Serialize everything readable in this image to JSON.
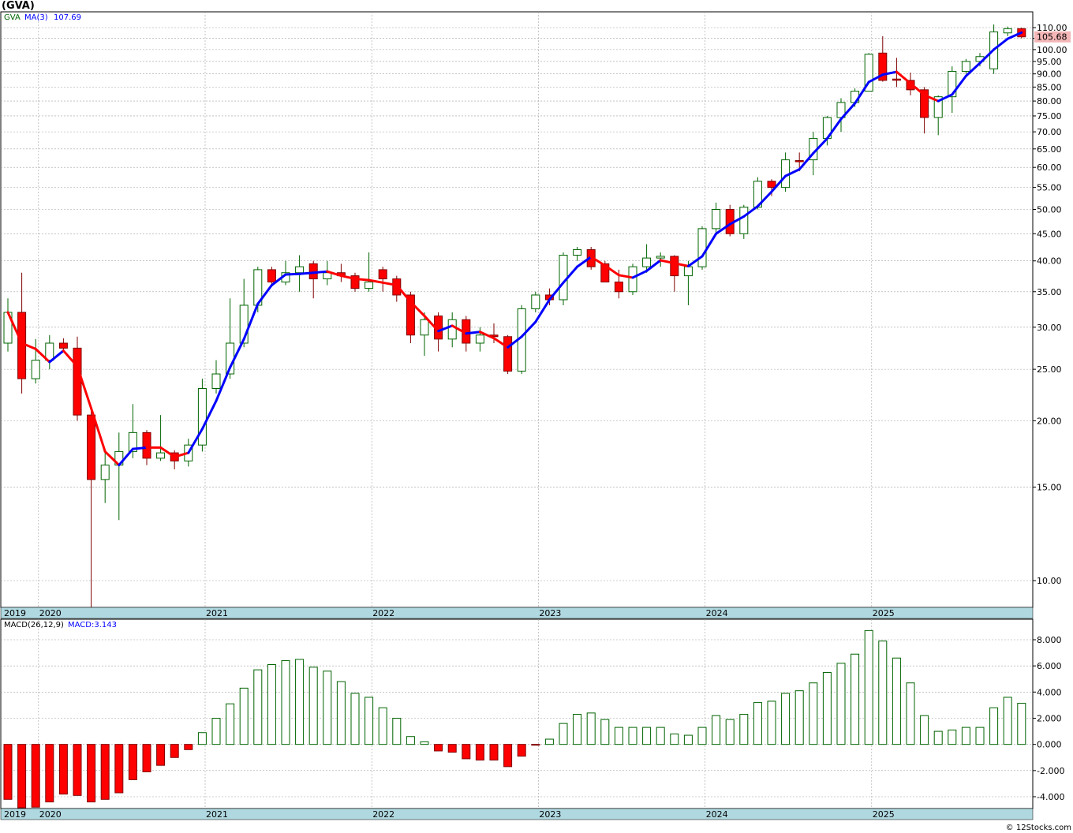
{
  "header": {
    "title": "(GVA)"
  },
  "legend": {
    "symbol": "GVA",
    "ma_label": "MA(3)",
    "ma_value": "107.69",
    "macd_label": "MACD(26,12,9)",
    "macd_value_label": "MACD:3.143"
  },
  "last_price_label": "105.68",
  "footer": {
    "credit": "© 12Stocks.com"
  },
  "colors": {
    "up": "#006400",
    "down": "#ff0000",
    "ma_up": "#0000ff",
    "ma_down": "#ff0000",
    "axis_band": "#b0d8e0",
    "grid": "#a0a0a0",
    "price_box": "#f4b6b6"
  },
  "chart_data": [
    {
      "type": "candlestick",
      "scale": "log",
      "ylim": [
        9,
        115
      ],
      "y_ticks": [
        "10.00",
        "15.00",
        "20.00",
        "25.00",
        "30.00",
        "35.00",
        "40.00",
        "45.00",
        "50.00",
        "55.00",
        "60.00",
        "65.00",
        "70.00",
        "75.00",
        "80.00",
        "85.00",
        "90.00",
        "95.00",
        "100.00",
        "105.00",
        "110.00"
      ],
      "x_labels": [
        "2019",
        "2020",
        "2021",
        "2022",
        "2023",
        "2024",
        "2025"
      ],
      "x_label_months": [
        0,
        3,
        15,
        27,
        39,
        51,
        63
      ],
      "ohlc": [
        [
          28.0,
          34.0,
          27.0,
          32.0
        ],
        [
          32.0,
          38.0,
          22.5,
          24.0
        ],
        [
          24.0,
          28.5,
          23.5,
          26.0
        ],
        [
          26.0,
          29.0,
          25.0,
          28.0
        ],
        [
          28.0,
          28.6,
          27.0,
          27.4
        ],
        [
          27.4,
          28.8,
          20.0,
          20.5
        ],
        [
          20.5,
          21.0,
          8.0,
          15.5
        ],
        [
          15.5,
          17.5,
          14.0,
          16.5
        ],
        [
          16.5,
          19.0,
          13.0,
          17.5
        ],
        [
          17.5,
          21.5,
          17.0,
          19.0
        ],
        [
          19.0,
          19.2,
          16.5,
          17.0
        ],
        [
          17.0,
          20.5,
          16.8,
          17.4
        ],
        [
          17.4,
          17.6,
          16.2,
          16.8
        ],
        [
          16.8,
          18.5,
          16.4,
          18.0
        ],
        [
          18.0,
          24.0,
          17.5,
          23.0
        ],
        [
          23.0,
          26.0,
          22.5,
          24.5
        ],
        [
          24.5,
          34.0,
          24.0,
          28.0
        ],
        [
          28.0,
          37.0,
          27.5,
          33.0
        ],
        [
          33.0,
          39.0,
          32.0,
          38.5
        ],
        [
          38.5,
          39.0,
          36.0,
          36.5
        ],
        [
          36.5,
          40.0,
          36.0,
          38.0
        ],
        [
          38.0,
          41.0,
          35.0,
          39.0
        ],
        [
          39.5,
          40.0,
          34.0,
          37.0
        ],
        [
          37.0,
          40.0,
          36.0,
          38.0
        ],
        [
          38.0,
          39.5,
          36.5,
          37.5
        ],
        [
          37.5,
          38.0,
          35.0,
          35.5
        ],
        [
          35.5,
          41.5,
          35.0,
          36.5
        ],
        [
          38.5,
          39.0,
          35.0,
          37.0
        ],
        [
          37.0,
          37.5,
          33.5,
          34.5
        ],
        [
          34.5,
          35.0,
          28.0,
          29.0
        ],
        [
          29.0,
          32.0,
          26.5,
          31.0
        ],
        [
          31.5,
          32.0,
          27.0,
          28.5
        ],
        [
          28.5,
          32.0,
          27.5,
          31.0
        ],
        [
          31.0,
          31.5,
          27.0,
          28.0
        ],
        [
          28.0,
          30.0,
          27.0,
          29.0
        ],
        [
          29.0,
          30.5,
          28.0,
          28.8
        ],
        [
          28.8,
          29.0,
          24.5,
          24.8
        ],
        [
          24.8,
          33.0,
          24.5,
          32.5
        ],
        [
          32.5,
          35.0,
          32.0,
          34.5
        ],
        [
          34.5,
          35.5,
          33.0,
          33.8
        ],
        [
          33.8,
          41.5,
          33.0,
          41.0
        ],
        [
          41.0,
          42.5,
          40.0,
          42.0
        ],
        [
          42.0,
          42.5,
          38.5,
          39.0
        ],
        [
          39.5,
          40.0,
          36.5,
          36.5
        ],
        [
          36.5,
          38.5,
          34.0,
          35.0
        ],
        [
          35.0,
          39.5,
          34.5,
          39.0
        ],
        [
          39.0,
          43.0,
          38.0,
          40.5
        ],
        [
          40.5,
          41.5,
          39.0,
          40.8
        ],
        [
          40.8,
          41.0,
          35.0,
          37.5
        ],
        [
          37.5,
          40.0,
          33.0,
          39.0
        ],
        [
          39.0,
          46.5,
          38.5,
          46.0
        ],
        [
          46.0,
          51.5,
          45.0,
          50.0
        ],
        [
          50.0,
          51.0,
          44.5,
          45.0
        ],
        [
          45.0,
          51.0,
          44.0,
          50.5
        ],
        [
          50.5,
          57.5,
          50.0,
          56.5
        ],
        [
          56.5,
          57.0,
          53.0,
          55.0
        ],
        [
          55.0,
          64.0,
          54.0,
          62.0
        ],
        [
          61.8,
          64.0,
          59.0,
          61.5
        ],
        [
          62.0,
          70.0,
          58.0,
          68.0
        ],
        [
          68.0,
          75.0,
          66.0,
          74.5
        ],
        [
          74.5,
          81.0,
          70.0,
          79.5
        ],
        [
          79.5,
          84.5,
          78.0,
          83.5
        ],
        [
          83.5,
          98.5,
          84.0,
          98.0
        ],
        [
          98.5,
          106.0,
          87.0,
          87.5
        ],
        [
          88.0,
          96.5,
          85.0,
          87.8
        ],
        [
          87.5,
          90.5,
          82.0,
          84.0
        ],
        [
          84.0,
          85.0,
          69.5,
          74.5
        ],
        [
          74.5,
          82.0,
          69.0,
          81.5
        ],
        [
          81.5,
          93.0,
          76.0,
          91.0
        ],
        [
          91.0,
          96.0,
          90.0,
          95.0
        ],
        [
          95.0,
          98.5,
          93.0,
          97.0
        ],
        [
          92.0,
          111.5,
          90.0,
          108.0
        ],
        [
          107.5,
          110.5,
          106.0,
          109.5
        ],
        [
          109.5,
          110.0,
          105.0,
          105.68
        ]
      ],
      "ma3": [
        32.0,
        28.0,
        27.3,
        25.8,
        27.1,
        25.3,
        21.1,
        17.5,
        16.5,
        17.7,
        17.8,
        17.8,
        17.1,
        17.4,
        19.3,
        21.8,
        25.2,
        28.5,
        33.2,
        36.0,
        37.7,
        37.8,
        38.0,
        38.2,
        37.5,
        37.0,
        36.8,
        36.4,
        36.0,
        33.5,
        31.5,
        29.5,
        30.2,
        29.2,
        29.4,
        28.6,
        27.5,
        28.8,
        30.7,
        33.8,
        36.4,
        39.0,
        40.7,
        39.2,
        37.6,
        37.2,
        38.3,
        40.1,
        39.6,
        39.1,
        40.8,
        45.0,
        46.9,
        48.5,
        50.7,
        54.0,
        57.8,
        59.5,
        63.8,
        68.0,
        74.0,
        79.2,
        86.9,
        89.7,
        90.8,
        86.4,
        82.1,
        80.0,
        82.3,
        89.2,
        94.3,
        100.0,
        104.8,
        107.69
      ],
      "ma_trend_up": [
        null,
        false,
        false,
        false,
        true,
        false,
        false,
        false,
        false,
        true,
        true,
        false,
        false,
        false,
        true,
        true,
        true,
        true,
        true,
        true,
        true,
        true,
        true,
        true,
        false,
        false,
        false,
        false,
        false,
        false,
        false,
        false,
        true,
        false,
        true,
        false,
        false,
        true,
        true,
        true,
        true,
        true,
        true,
        false,
        false,
        false,
        true,
        true,
        false,
        false,
        true,
        true,
        true,
        true,
        true,
        true,
        true,
        true,
        true,
        true,
        true,
        true,
        true,
        true,
        true,
        false,
        false,
        false,
        true,
        true,
        true,
        true,
        true,
        true
      ]
    },
    {
      "type": "bar",
      "title": "MACD(26,12,9)",
      "ylim": [
        -5,
        9
      ],
      "y_ticks": [
        "-4.000",
        "-2.000",
        "0.000",
        "2.000",
        "4.000",
        "6.000",
        "8.000"
      ],
      "x_labels": [
        "2019",
        "2020",
        "2021",
        "2022",
        "2023",
        "2024",
        "2025"
      ],
      "values": [
        -4.2,
        -5.5,
        -4.8,
        -4.4,
        -3.8,
        -3.9,
        -4.4,
        -4.2,
        -3.7,
        -2.7,
        -2.1,
        -1.6,
        -1.0,
        -0.4,
        0.9,
        2.0,
        3.1,
        4.3,
        5.7,
        6.1,
        6.4,
        6.5,
        5.9,
        5.6,
        4.8,
        3.9,
        3.6,
        2.8,
        2.0,
        0.6,
        0.2,
        -0.5,
        -0.6,
        -1.1,
        -1.2,
        -1.2,
        -1.7,
        -0.9,
        -0.05,
        0.4,
        1.6,
        2.3,
        2.4,
        1.9,
        1.3,
        1.3,
        1.3,
        1.3,
        0.8,
        0.7,
        1.3,
        2.2,
        1.9,
        2.3,
        3.2,
        3.3,
        3.9,
        4.1,
        4.7,
        5.5,
        6.2,
        6.9,
        8.7,
        7.9,
        6.6,
        4.7,
        2.2,
        1.0,
        1.1,
        1.3,
        1.3,
        2.8,
        3.6,
        3.143
      ]
    }
  ]
}
